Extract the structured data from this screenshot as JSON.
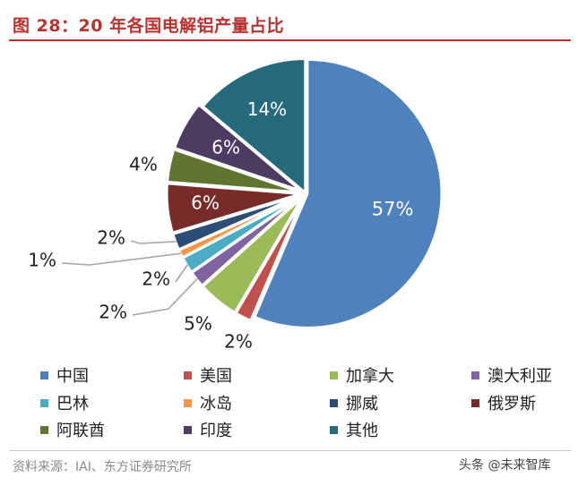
{
  "title": "图 28：20 年各国电解铝产量占比",
  "source": "资料来源：IAI、东方证券研究所",
  "watermark": "头条 @未来智库",
  "chart_data": {
    "type": "pie",
    "title": "图 28：20 年各国电解铝产量占比",
    "start_angle_deg": 0,
    "direction": "clockwise",
    "legend_position": "bottom",
    "slices": [
      {
        "label": "中国",
        "value": 57,
        "display": "57%",
        "color": "#4f81bd"
      },
      {
        "label": "美国",
        "value": 2,
        "display": "2%",
        "color": "#c0504d"
      },
      {
        "label": "加拿大",
        "value": 5,
        "display": "5%",
        "color": "#9bbb59"
      },
      {
        "label": "澳大利亚",
        "value": 2,
        "display": "2%",
        "color": "#8064a2"
      },
      {
        "label": "巴林",
        "value": 2,
        "display": "2%",
        "color": "#4bacc6"
      },
      {
        "label": "冰岛",
        "value": 1,
        "display": "1%",
        "color": "#f79646"
      },
      {
        "label": "挪威",
        "value": 2,
        "display": "2%",
        "color": "#2c4d75"
      },
      {
        "label": "俄罗斯",
        "value": 6,
        "display": "6%",
        "color": "#772c2a"
      },
      {
        "label": "阿联酋",
        "value": 4,
        "display": "4%",
        "color": "#5f7530"
      },
      {
        "label": "印度",
        "value": 6,
        "display": "6%",
        "color": "#4d3b62"
      },
      {
        "label": "其他",
        "value": 14,
        "display": "14%",
        "color": "#276a7c"
      }
    ]
  }
}
